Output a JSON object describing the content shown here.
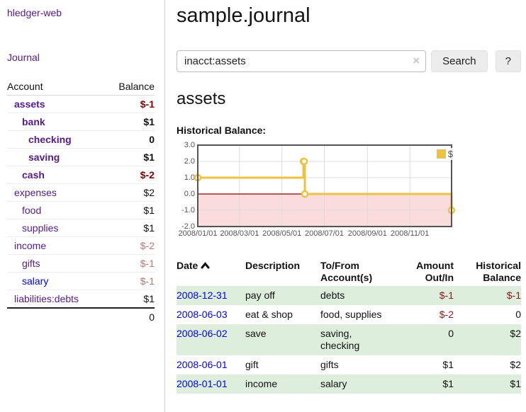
{
  "app": {
    "title": "hledger-web"
  },
  "sidebar": {
    "journal_link": "Journal",
    "accounts": {
      "col_account": "Account",
      "col_balance": "Balance",
      "rows": [
        {
          "name": "assets",
          "balance": "$-1",
          "depth": 1,
          "bold": true,
          "balance_class": "neg-strong",
          "link_color": "purple"
        },
        {
          "name": "bank",
          "balance": "$1",
          "depth": 2,
          "bold": true,
          "balance_class": "pos",
          "link_color": "purple"
        },
        {
          "name": "checking",
          "balance": "0",
          "depth": 3,
          "bold": true,
          "balance_class": "pos",
          "link_color": "purple"
        },
        {
          "name": "saving",
          "balance": "$1",
          "depth": 3,
          "bold": true,
          "balance_class": "pos",
          "link_color": "purple"
        },
        {
          "name": "cash",
          "balance": "$-2",
          "depth": 2,
          "bold": true,
          "balance_class": "neg-strong",
          "link_color": "purple"
        },
        {
          "name": "expenses",
          "balance": "$2",
          "depth": 1,
          "bold": false,
          "balance_class": "pos",
          "link_color": "purple"
        },
        {
          "name": "food",
          "balance": "$1",
          "depth": 2,
          "bold": false,
          "balance_class": "pos",
          "link_color": "purple"
        },
        {
          "name": "supplies",
          "balance": "$1",
          "depth": 2,
          "bold": false,
          "balance_class": "pos",
          "link_color": "purple"
        },
        {
          "name": "income",
          "balance": "$-2",
          "depth": 1,
          "bold": false,
          "balance_class": "neg-soft",
          "link_color": "purple"
        },
        {
          "name": "gifts",
          "balance": "$-1",
          "depth": 2,
          "bold": false,
          "balance_class": "neg-soft",
          "link_color": "purple"
        },
        {
          "name": "salary",
          "balance": "$-1",
          "depth": 2,
          "bold": false,
          "balance_class": "neg-soft",
          "link_color": "blue"
        },
        {
          "name": "liabilities:debts",
          "balance": "$1",
          "depth": 1,
          "bold": false,
          "balance_class": "pos",
          "link_color": "purple"
        }
      ],
      "total": "0"
    }
  },
  "header": {
    "title": "sample.journal",
    "search_value": "inacct:assets",
    "clear_icon": "×",
    "search_button": "Search",
    "help_button": "?"
  },
  "content": {
    "account_heading": "assets",
    "chart_label": "Historical Balance:"
  },
  "chart_data": {
    "type": "line",
    "title": "Historical Balance",
    "step": true,
    "series": [
      {
        "name": "$",
        "color": "#EDC240",
        "points": [
          {
            "x": "2008-01-01",
            "y": 1
          },
          {
            "x": "2008-06-01",
            "y": 2
          },
          {
            "x": "2008-06-02",
            "y": 2
          },
          {
            "x": "2008-06-03",
            "y": 0
          },
          {
            "x": "2008-12-31",
            "y": -1
          }
        ]
      }
    ],
    "x_start": "2008-01-01",
    "x_end": "2008-12-31",
    "x_ticks": [
      {
        "date": "2008-01-01",
        "label": "2008/01/01"
      },
      {
        "date": "2008-03-01",
        "label": "2008/03/01"
      },
      {
        "date": "2008-05-01",
        "label": "2008/05/01"
      },
      {
        "date": "2008-07-01",
        "label": "2008/07/01"
      },
      {
        "date": "2008-09-01",
        "label": "2008/09/01"
      },
      {
        "date": "2008-11-01",
        "label": "2008/11/01"
      }
    ],
    "y_ticks": [
      "3.0",
      "2.0",
      "1.0",
      "0.0",
      "-1.0",
      "-2.0"
    ],
    "ylim": [
      -2,
      3
    ],
    "grid": true,
    "legend_position": "top-right",
    "colors": {
      "line": "#EDC240",
      "marker_fill": "#ffffff",
      "gridline": "#dddddd",
      "frame": "#545454",
      "negative_area": "#FADCDC",
      "zero_line": "#8B0000",
      "tick_text": "#545454"
    }
  },
  "transactions": {
    "columns": [
      {
        "label1": "Date",
        "label2": "",
        "sortable": true,
        "sort_icon": "chevron-up"
      },
      {
        "label1": "Description",
        "label2": "",
        "sortable": false
      },
      {
        "label1": "To/From",
        "label2": "Account(s)",
        "sortable": false
      },
      {
        "label1": "Amount",
        "label2": "Out/In",
        "sortable": false,
        "align": "right"
      },
      {
        "label1": "Historical",
        "label2": "Balance",
        "sortable": false,
        "align": "right"
      }
    ],
    "rows": [
      {
        "date": "2008-12-31",
        "description": "pay off",
        "accounts": "debts",
        "amount": "$-1",
        "amount_neg": true,
        "balance": "$-1",
        "balance_neg": true,
        "shaded": true
      },
      {
        "date": "2008-06-03",
        "description": "eat & shop",
        "accounts": "food, supplies",
        "amount": "$-2",
        "amount_neg": true,
        "balance": "0",
        "balance_neg": false,
        "shaded": false
      },
      {
        "date": "2008-06-02",
        "description": "save",
        "accounts": "saving, checking",
        "amount": "0",
        "amount_neg": false,
        "balance": "$2",
        "balance_neg": false,
        "shaded": true
      },
      {
        "date": "2008-06-01",
        "description": "gift",
        "accounts": "gifts",
        "amount": "$1",
        "amount_neg": false,
        "balance": "$2",
        "balance_neg": false,
        "shaded": false
      },
      {
        "date": "2008-01-01",
        "description": "income",
        "accounts": "salary",
        "amount": "$1",
        "amount_neg": false,
        "balance": "$1",
        "balance_neg": false,
        "shaded": true
      }
    ]
  },
  "colors": {
    "accent_purple": "#551A8B",
    "link_blue": "#0000EE",
    "negative_strong": "#7F0000",
    "negative_soft": "#BC7676",
    "row_stripe_green": "#ddeedd",
    "chart_line_gold": "#EDC240"
  }
}
